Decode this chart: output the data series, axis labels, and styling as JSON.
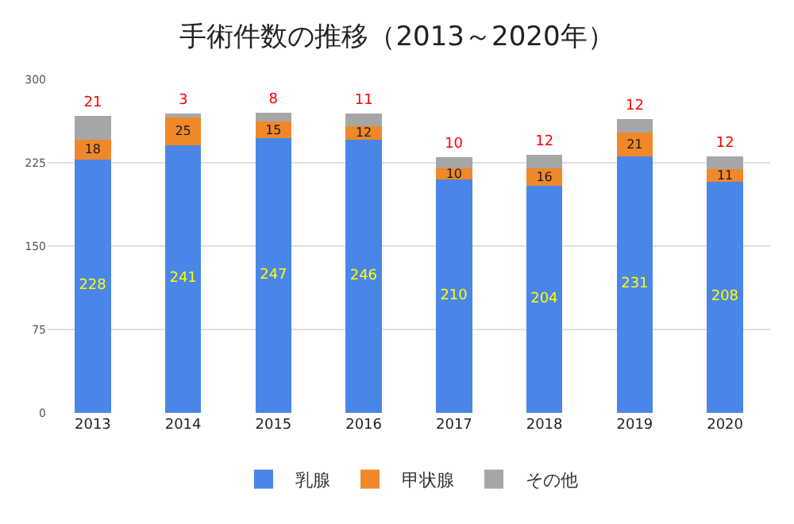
{
  "chart_data": {
    "type": "bar",
    "title": "手術件数の推移（2013～2020年）",
    "categories": [
      "2013",
      "2014",
      "2015",
      "2016",
      "2017",
      "2018",
      "2019",
      "2020"
    ],
    "series": [
      {
        "name": "乳腺",
        "color": "#4a86e8",
        "values": [
          228,
          241,
          247,
          246,
          210,
          204,
          231,
          208
        ]
      },
      {
        "name": "甲状腺",
        "color": "#f0882a",
        "values": [
          18,
          25,
          15,
          12,
          10,
          16,
          21,
          11
        ]
      },
      {
        "name": "その他",
        "color": "#a6a6a6",
        "values": [
          21,
          3,
          8,
          11,
          10,
          12,
          12,
          12
        ]
      }
    ],
    "stacked": true,
    "data_labels": true,
    "ylim": [
      0,
      300
    ],
    "yticks": [
      0,
      75,
      150,
      225,
      300
    ],
    "grid": "y",
    "legend": "bottom"
  }
}
